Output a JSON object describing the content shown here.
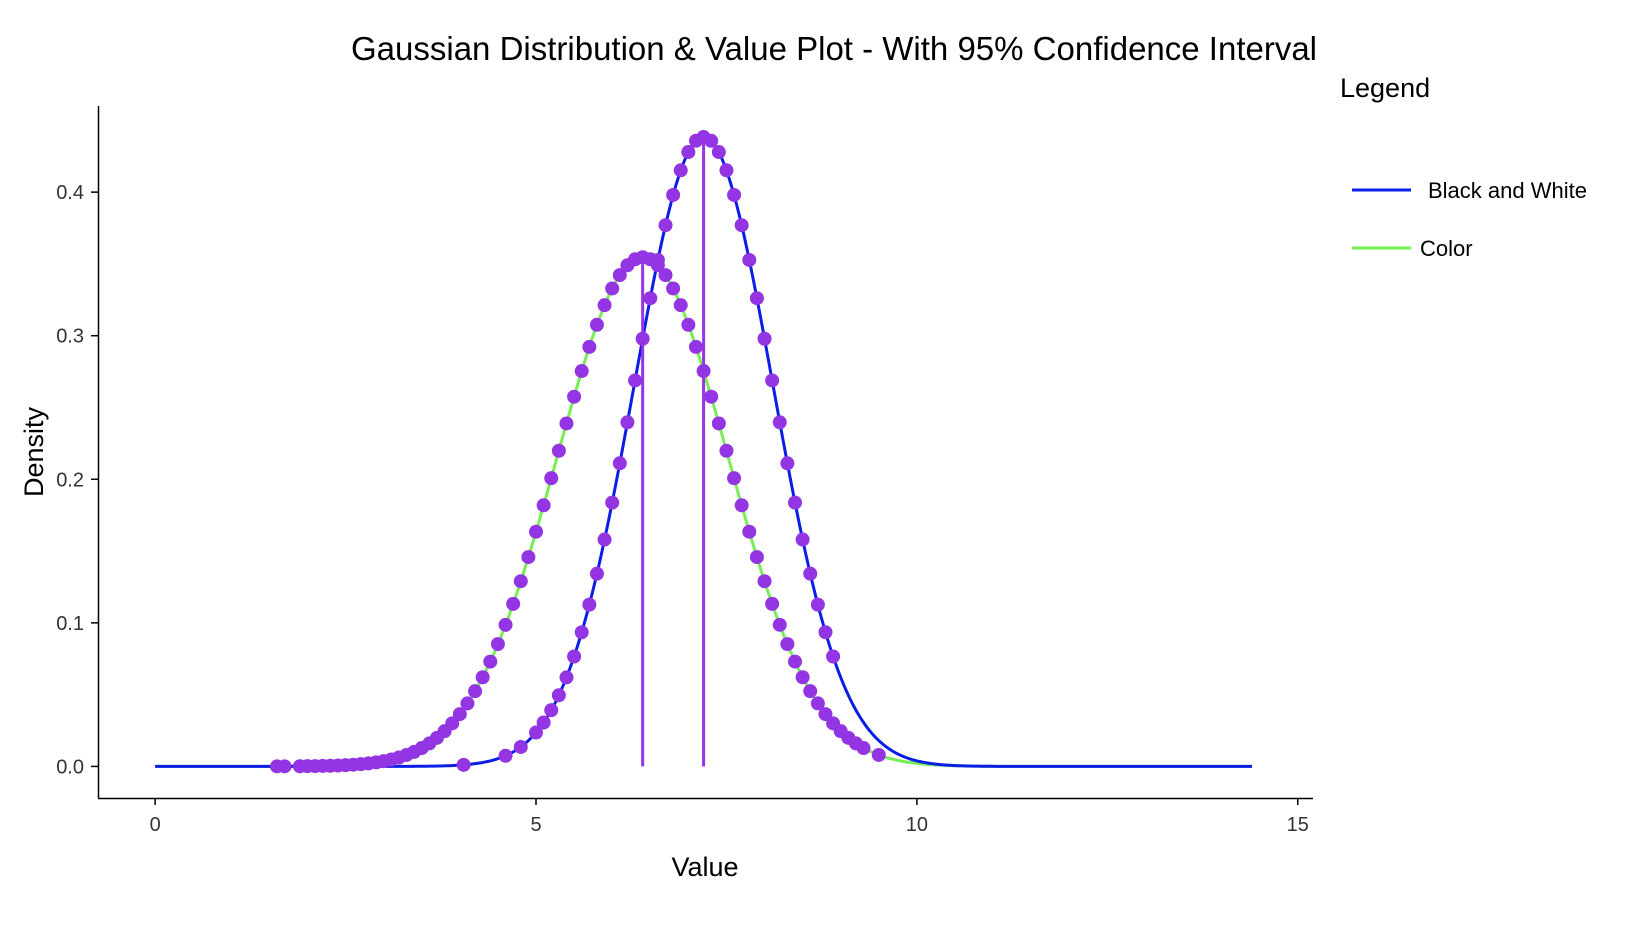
{
  "chart_data": {
    "type": "line",
    "title": "Gaussian Distribution & Value Plot - With 95% Confidence Interval",
    "xlabel": "Value",
    "ylabel": "Density",
    "xlim": [
      -0.75,
      15.2
    ],
    "ylim": [
      -0.022,
      0.46
    ],
    "x_ticks": [
      0,
      5,
      10,
      15
    ],
    "y_ticks": [
      0.0,
      0.1,
      0.2,
      0.3,
      0.4
    ],
    "y_tick_labels": [
      "0.0",
      "0.1",
      "0.2",
      "0.3",
      "0.4"
    ],
    "grid": false,
    "legend": {
      "title": "Legend",
      "position": "right"
    },
    "series": [
      {
        "name": "Black and White",
        "color": "#0a1ee6",
        "mean": 7.2,
        "sd": 0.91,
        "x_range": [
          0,
          14.4
        ],
        "points_x": [
          4.05,
          4.6,
          4.8,
          5.0,
          5.1,
          5.2,
          5.3,
          5.4,
          5.5,
          5.6,
          5.7,
          5.8,
          5.9,
          6.0,
          6.1,
          6.2,
          6.3,
          6.4,
          6.5,
          6.6,
          6.7,
          6.8,
          6.9,
          7.0,
          7.1,
          7.2,
          7.3,
          7.4,
          7.5,
          7.6,
          7.7,
          7.8,
          7.9,
          8.0,
          8.1,
          8.2,
          8.3,
          8.4,
          8.5,
          8.6,
          8.7,
          8.8,
          8.9
        ],
        "ci_line_x": 7.2
      },
      {
        "name": "Color",
        "color": "#77ee55",
        "mean": 6.4,
        "sd": 1.125,
        "x_range": [
          0,
          14.4
        ],
        "points_x": [
          1.6,
          1.7,
          1.9,
          2.0,
          2.1,
          2.2,
          2.3,
          2.4,
          2.5,
          2.6,
          2.7,
          2.8,
          2.9,
          3.0,
          3.1,
          3.2,
          3.3,
          3.4,
          3.5,
          3.6,
          3.7,
          3.8,
          3.9,
          4.0,
          4.1,
          4.2,
          4.3,
          4.4,
          4.5,
          4.6,
          4.7,
          4.8,
          4.9,
          5.0,
          5.1,
          5.2,
          5.3,
          5.4,
          5.5,
          5.6,
          5.7,
          5.8,
          5.9,
          6.0,
          6.1,
          6.2,
          6.3,
          6.4,
          6.5,
          6.6,
          6.7,
          6.8,
          6.9,
          7.0,
          7.1,
          7.2,
          7.3,
          7.4,
          7.5,
          7.6,
          7.7,
          7.8,
          7.9,
          8.0,
          8.1,
          8.2,
          8.3,
          8.4,
          8.5,
          8.6,
          8.7,
          8.8,
          8.9,
          9.0,
          9.1,
          9.2,
          9.3,
          9.5
        ],
        "ci_line_x": 6.4
      }
    ],
    "point_color": "#9335e3",
    "ci_line_color": "#9335e3"
  }
}
